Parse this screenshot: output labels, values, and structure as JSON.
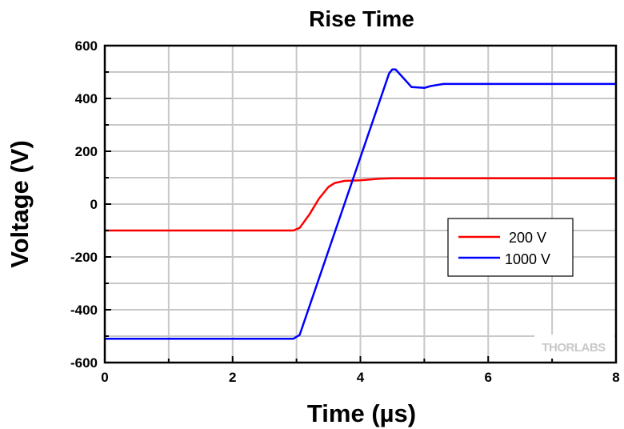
{
  "chart_data": {
    "type": "line",
    "title": "Rise Time",
    "xlabel": "Time (µs)",
    "ylabel": "Voltage (V)",
    "xlim": [
      0,
      8
    ],
    "ylim": [
      -600,
      600
    ],
    "xticks": [
      "0",
      "2",
      "4",
      "6",
      "8"
    ],
    "yticks": [
      "-600",
      "-400",
      "-200",
      "0",
      "200",
      "400",
      "600"
    ],
    "grid": true,
    "legend_position": "center-right",
    "series": [
      {
        "name": "200 V",
        "color": "#ff0000",
        "x": [
          0,
          2.95,
          3.05,
          3.2,
          3.35,
          3.5,
          3.6,
          3.75,
          4.0,
          4.3,
          4.5,
          8
        ],
        "y": [
          -100,
          -100,
          -90,
          -40,
          20,
          65,
          80,
          88,
          90,
          96,
          98,
          98
        ]
      },
      {
        "name": "1000 V",
        "color": "#0000ff",
        "x": [
          0,
          2.95,
          3.05,
          4.45,
          4.5,
          4.55,
          4.7,
          4.8,
          5.0,
          5.1,
          5.3,
          8
        ],
        "y": [
          -510,
          -510,
          -495,
          495,
          510,
          510,
          470,
          443,
          440,
          447,
          455,
          455
        ]
      }
    ],
    "watermark": "THORLABS"
  }
}
